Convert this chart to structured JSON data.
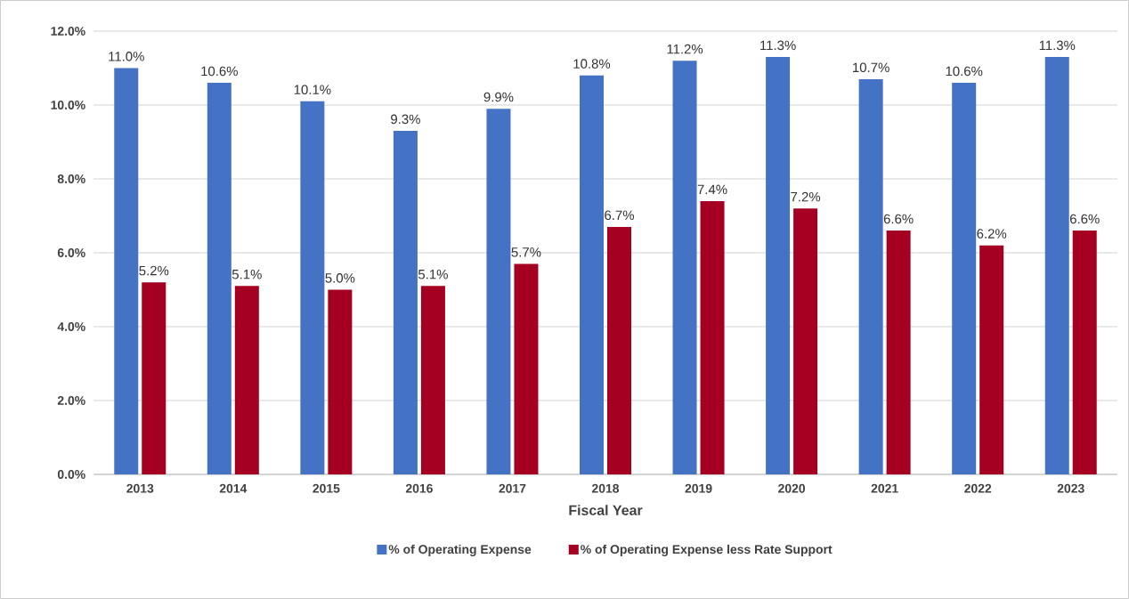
{
  "chart_data": {
    "type": "bar",
    "xlabel": "Fiscal Year",
    "categories": [
      "2013",
      "2014",
      "2015",
      "2016",
      "2017",
      "2018",
      "2019",
      "2020",
      "2021",
      "2022",
      "2023"
    ],
    "series": [
      {
        "name": "% of Operating Expense",
        "color": "#4472c4",
        "values": [
          11.0,
          10.6,
          10.1,
          9.3,
          9.9,
          10.8,
          11.2,
          11.3,
          10.7,
          10.6,
          11.3
        ],
        "value_labels": [
          "11.0%",
          "10.6%",
          "10.1%",
          "9.3%",
          "9.9%",
          "10.8%",
          "11.2%",
          "11.3%",
          "10.7%",
          "10.6%",
          "11.3%"
        ]
      },
      {
        "name": "% of Operating Expense less Rate Support",
        "color": "#a50021",
        "values": [
          5.2,
          5.1,
          5.0,
          5.1,
          5.7,
          6.7,
          7.4,
          7.2,
          6.6,
          6.2,
          6.6
        ],
        "value_labels": [
          "5.2%",
          "5.1%",
          "5.0%",
          "5.1%",
          "5.7%",
          "6.7%",
          "7.4%",
          "7.2%",
          "6.6%",
          "6.2%",
          "6.6%"
        ]
      }
    ],
    "ylim": [
      0,
      12
    ],
    "yticks": [
      {
        "value": 0,
        "label": "0.0%"
      },
      {
        "value": 2,
        "label": "2.0%"
      },
      {
        "value": 4,
        "label": "4.0%"
      },
      {
        "value": 6,
        "label": "6.0%"
      },
      {
        "value": 8,
        "label": "8.0%"
      },
      {
        "value": 10,
        "label": "10.0%"
      },
      {
        "value": 12,
        "label": "12.0%"
      }
    ],
    "grid": "y",
    "legend": "bottom"
  }
}
